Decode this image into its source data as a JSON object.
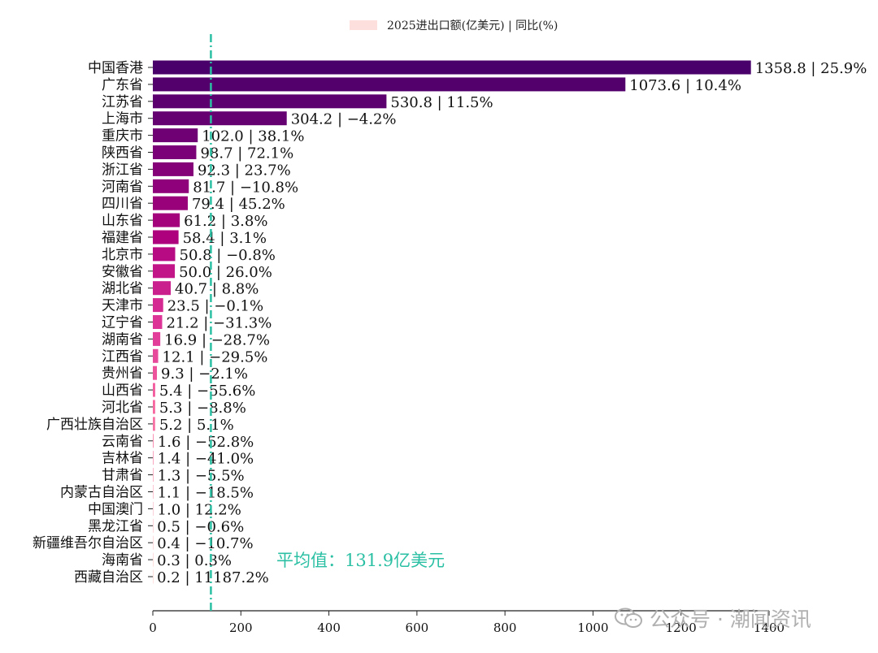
{
  "chart_data": {
    "type": "bar",
    "orientation": "horizontal",
    "legend": {
      "label": "2025进出口额(亿美元) | 同比(%)",
      "placement": "top-center",
      "swatch_color": "#fde0dd"
    },
    "categories": [
      "中国香港",
      "广东省",
      "江苏省",
      "上海市",
      "重庆市",
      "陕西省",
      "浙江省",
      "河南省",
      "四川省",
      "山东省",
      "福建省",
      "北京市",
      "安徽省",
      "湖北省",
      "天津市",
      "辽宁省",
      "湖南省",
      "江西省",
      "贵州省",
      "山西省",
      "河北省",
      "广西壮族自治区",
      "云南省",
      "吉林省",
      "甘肃省",
      "内蒙古自治区",
      "中国澳门",
      "黑龙江省",
      "新疆维吾尔自治区",
      "海南省",
      "西藏自治区"
    ],
    "values": [
      1358.8,
      1073.6,
      530.8,
      304.2,
      102.0,
      98.7,
      92.3,
      81.7,
      79.4,
      61.2,
      58.4,
      50.8,
      50.0,
      40.7,
      23.5,
      21.2,
      16.9,
      12.1,
      9.3,
      5.4,
      5.3,
      5.2,
      1.6,
      1.4,
      1.3,
      1.1,
      1.0,
      0.5,
      0.4,
      0.3,
      0.2
    ],
    "yoy": [
      25.9,
      10.4,
      11.5,
      -4.2,
      38.1,
      72.1,
      23.7,
      -10.8,
      45.2,
      3.8,
      3.1,
      -0.8,
      26.0,
      8.8,
      -0.1,
      -31.3,
      -28.7,
      -29.5,
      -2.1,
      -55.6,
      -8.8,
      5.1,
      -52.8,
      -41.0,
      -5.5,
      -18.5,
      12.2,
      -0.6,
      -10.7,
      0.3,
      11187.2
    ],
    "value_labels": [
      "1358.8 | 25.9%",
      "1073.6 | 10.4%",
      "530.8 | 11.5%",
      "304.2 | −4.2%",
      "102.0 | 38.1%",
      "98.7 | 72.1%",
      "92.3 | 23.7%",
      "81.7 | −10.8%",
      "79.4 | 45.2%",
      "61.2 | 3.8%",
      "58.4 | 3.1%",
      "50.8 | −0.8%",
      "50.0 | 26.0%",
      "40.7 | 8.8%",
      "23.5 | −0.1%",
      "21.2 | −31.3%",
      "16.9 | −28.7%",
      "12.1 | −29.5%",
      "9.3 | −2.1%",
      "5.4 | −55.6%",
      "5.3 | −8.8%",
      "5.2 | 5.1%",
      "1.6 | −52.8%",
      "1.4 | −41.0%",
      "1.3 | −5.5%",
      "1.1 | −18.5%",
      "1.0 | 12.2%",
      "0.5 | −0.6%",
      "0.4 | −10.7%",
      "0.3 | 0.3%",
      "0.2 | 11187.2%"
    ],
    "x_ticks": [
      0,
      200,
      400,
      600,
      800,
      1000,
      1200,
      1400
    ],
    "x_tick_labels": [
      "0",
      "200",
      "400",
      "600",
      "800",
      "1000",
      "1200",
      "1400"
    ],
    "xlim": [
      0,
      1400
    ],
    "average": {
      "value": 131.9,
      "label": "平均值：131.9亿美元",
      "color": "#2bbfa4"
    },
    "colormap": "RdPu (dark purple for largest, light pink for smallest)",
    "grid": false
  },
  "watermark": {
    "text": "公众号 · 潮闻资讯",
    "icon": "wechat-icon"
  }
}
